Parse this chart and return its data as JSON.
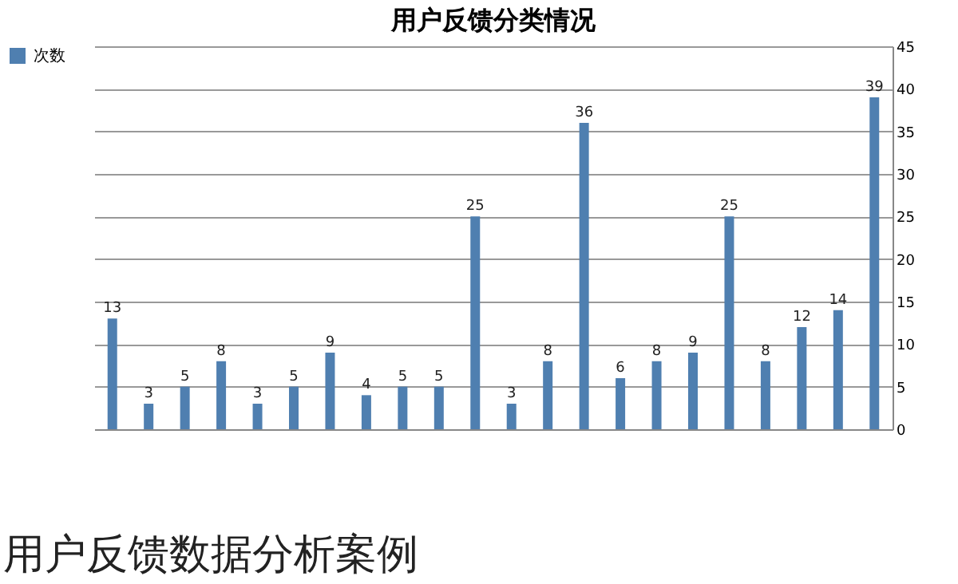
{
  "chart_data": {
    "type": "bar",
    "title": "用户反馈分类情况",
    "categories": [
      null,
      null,
      null,
      null,
      null,
      null,
      null,
      null,
      null,
      null,
      null,
      null,
      null,
      null,
      null,
      null,
      null,
      null,
      null,
      null,
      null,
      null
    ],
    "series": [
      {
        "name": "次数",
        "color": "#4f7fb0",
        "values": [
          13,
          3,
          5,
          8,
          3,
          5,
          9,
          4,
          5,
          5,
          25,
          3,
          8,
          36,
          6,
          8,
          9,
          25,
          8,
          12,
          14,
          39
        ]
      }
    ],
    "ylim": [
      0,
      45
    ],
    "yticks": [
      0,
      5,
      10,
      15,
      20,
      25,
      30,
      35,
      40,
      45
    ],
    "grid": "y",
    "legend": "left",
    "data_labels": true,
    "annotations": [
      "用户反馈数据分析案例"
    ]
  }
}
